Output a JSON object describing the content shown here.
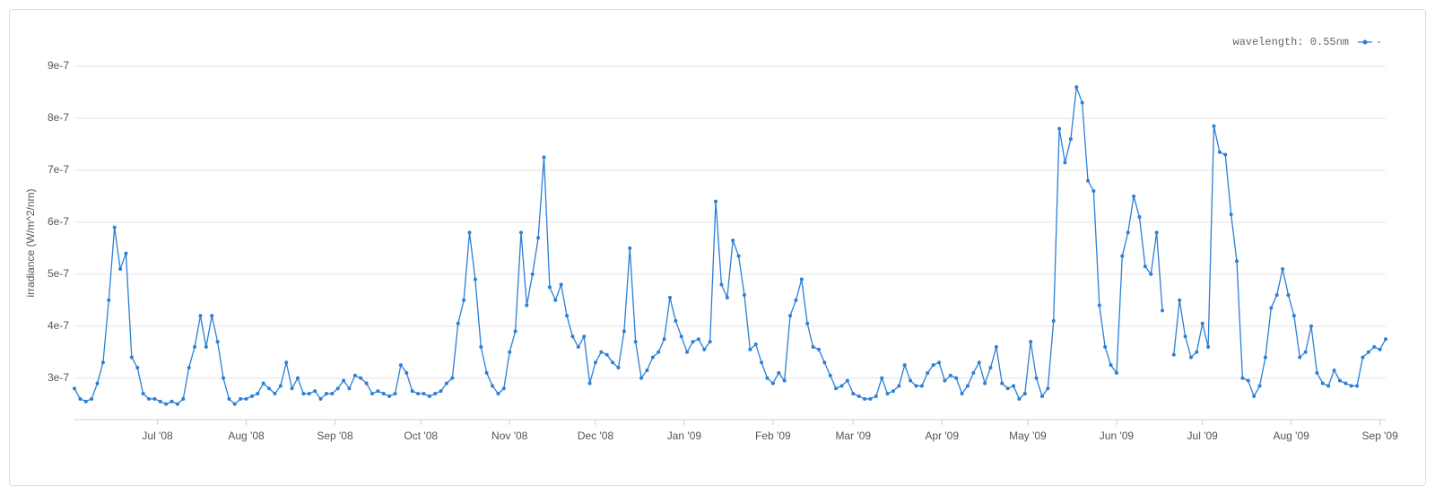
{
  "chart_data": {
    "type": "line",
    "y_label": "irradiance (W/m^2/nm)",
    "legend_title": "wavelength: 0.55nm",
    "legend": "top-right",
    "grid": true,
    "ylim": [
      2.2e-07,
      9e-07
    ],
    "yticks": [
      3e-07,
      4e-07,
      5e-07,
      6e-07,
      7e-07,
      8e-07,
      9e-07
    ],
    "xlim": [
      0,
      229
    ],
    "xticks": [
      {
        "value": 14.5,
        "label": "Jul '08"
      },
      {
        "value": 30,
        "label": "Aug '08"
      },
      {
        "value": 45.5,
        "label": "Sep '08"
      },
      {
        "value": 60.5,
        "label": "Oct '08"
      },
      {
        "value": 76,
        "label": "Nov '08"
      },
      {
        "value": 91,
        "label": "Dec '08"
      },
      {
        "value": 106.5,
        "label": "Jan '09"
      },
      {
        "value": 122,
        "label": "Feb '09"
      },
      {
        "value": 136,
        "label": "Mar '09"
      },
      {
        "value": 151.5,
        "label": "Apr '09"
      },
      {
        "value": 166.5,
        "label": "May '09"
      },
      {
        "value": 182,
        "label": "Jun '09"
      },
      {
        "value": 197,
        "label": "Jul '09"
      },
      {
        "value": 212.5,
        "label": "Aug '09"
      },
      {
        "value": 228,
        "label": "Sep '09"
      }
    ],
    "series": [
      {
        "name": "-",
        "color": "#2b7fd6",
        "values": [
          2.8e-07,
          2.6e-07,
          2.55e-07,
          2.6e-07,
          2.9e-07,
          3.3e-07,
          4.5e-07,
          5.9e-07,
          5.1e-07,
          5.4e-07,
          3.4e-07,
          3.2e-07,
          2.7e-07,
          2.6e-07,
          2.6e-07,
          2.55e-07,
          2.5e-07,
          2.55e-07,
          2.5e-07,
          2.6e-07,
          3.2e-07,
          3.6e-07,
          4.2e-07,
          3.6e-07,
          4.2e-07,
          3.7e-07,
          3e-07,
          2.6e-07,
          2.5e-07,
          2.6e-07,
          2.6e-07,
          2.65e-07,
          2.7e-07,
          2.9e-07,
          2.8e-07,
          2.7e-07,
          2.85e-07,
          3.3e-07,
          2.8e-07,
          3e-07,
          2.7e-07,
          2.7e-07,
          2.75e-07,
          2.6e-07,
          2.7e-07,
          2.7e-07,
          2.8e-07,
          2.95e-07,
          2.8e-07,
          3.05e-07,
          3e-07,
          2.9e-07,
          2.7e-07,
          2.75e-07,
          2.7e-07,
          2.65e-07,
          2.7e-07,
          3.25e-07,
          3.1e-07,
          2.75e-07,
          2.7e-07,
          2.7e-07,
          2.65e-07,
          2.7e-07,
          2.75e-07,
          2.9e-07,
          3e-07,
          4.05e-07,
          4.5e-07,
          5.8e-07,
          4.9e-07,
          3.6e-07,
          3.1e-07,
          2.85e-07,
          2.7e-07,
          2.8e-07,
          3.5e-07,
          3.9e-07,
          5.8e-07,
          4.4e-07,
          5e-07,
          5.7e-07,
          7.25e-07,
          4.75e-07,
          4.5e-07,
          4.8e-07,
          4.2e-07,
          3.8e-07,
          3.6e-07,
          3.8e-07,
          2.9e-07,
          3.3e-07,
          3.5e-07,
          3.45e-07,
          3.3e-07,
          3.2e-07,
          3.9e-07,
          5.5e-07,
          3.7e-07,
          3e-07,
          3.15e-07,
          3.4e-07,
          3.5e-07,
          3.75e-07,
          4.55e-07,
          4.1e-07,
          3.8e-07,
          3.5e-07,
          3.7e-07,
          3.75e-07,
          3.55e-07,
          3.7e-07,
          6.4e-07,
          4.8e-07,
          4.55e-07,
          5.65e-07,
          5.35e-07,
          4.6e-07,
          3.55e-07,
          3.65e-07,
          3.3e-07,
          3e-07,
          2.9e-07,
          3.1e-07,
          2.95e-07,
          4.2e-07,
          4.5e-07,
          4.9e-07,
          4.05e-07,
          3.6e-07,
          3.55e-07,
          3.3e-07,
          3.05e-07,
          2.8e-07,
          2.85e-07,
          2.95e-07,
          2.7e-07,
          2.65e-07,
          2.6e-07,
          2.6e-07,
          2.65e-07,
          3e-07,
          2.7e-07,
          2.75e-07,
          2.85e-07,
          3.25e-07,
          2.95e-07,
          2.85e-07,
          2.85e-07,
          3.1e-07,
          3.25e-07,
          3.3e-07,
          2.95e-07,
          3.05e-07,
          3e-07,
          2.7e-07,
          2.85e-07,
          3.1e-07,
          3.3e-07,
          2.9e-07,
          3.2e-07,
          3.6e-07,
          2.9e-07,
          2.8e-07,
          2.85e-07,
          2.6e-07,
          2.7e-07,
          3.7e-07,
          3e-07,
          2.65e-07,
          2.8e-07,
          4.1e-07,
          7.8e-07,
          7.15e-07,
          7.6e-07,
          8.6e-07,
          8.3e-07,
          6.8e-07,
          6.6e-07,
          4.4e-07,
          3.6e-07,
          3.25e-07,
          3.1e-07,
          5.35e-07,
          5.8e-07,
          6.5e-07,
          6.1e-07,
          5.15e-07,
          5e-07,
          5.8e-07,
          4.3e-07,
          null,
          3.45e-07,
          4.5e-07,
          3.8e-07,
          3.4e-07,
          3.5e-07,
          4.05e-07,
          3.6e-07,
          7.85e-07,
          7.35e-07,
          7.3e-07,
          6.15e-07,
          5.25e-07,
          3e-07,
          2.95e-07,
          2.65e-07,
          2.85e-07,
          3.4e-07,
          4.35e-07,
          4.6e-07,
          5.1e-07,
          4.6e-07,
          4.2e-07,
          3.4e-07,
          3.5e-07,
          4e-07,
          3.1e-07,
          2.9e-07,
          2.85e-07,
          3.15e-07,
          2.95e-07,
          2.9e-07,
          2.85e-07,
          2.85e-07,
          3.4e-07,
          3.5e-07,
          3.6e-07,
          3.55e-07,
          3.75e-07
        ]
      }
    ]
  }
}
